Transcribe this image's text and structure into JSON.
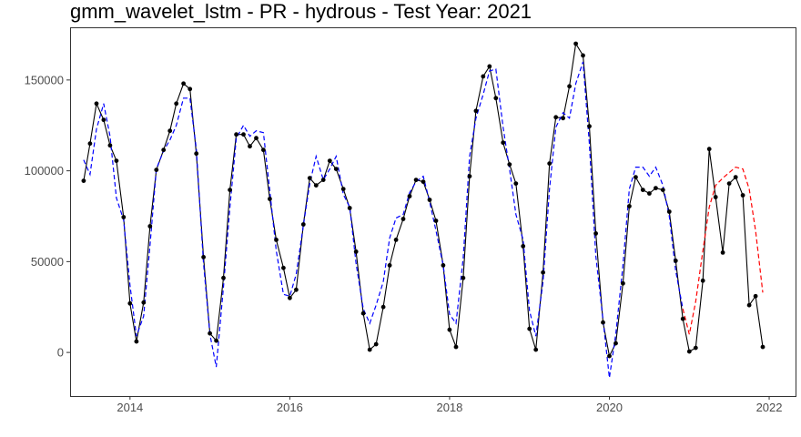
{
  "chart_data": {
    "type": "line",
    "title": "gmm_wavelet_lstm - PR - hydrous - Test Year: 2021",
    "xlabel": "",
    "ylabel": "",
    "xlim": [
      2013.25,
      2022.33
    ],
    "ylim": [
      -24000,
      179000
    ],
    "x_ticks": [
      2014,
      2016,
      2018,
      2020,
      2022
    ],
    "x_tick_labels": [
      "2014",
      "2016",
      "2018",
      "2020",
      "2022"
    ],
    "y_ticks": [
      0,
      50000,
      100000,
      150000
    ],
    "y_tick_labels": [
      "0",
      "50000",
      "100000",
      "150000"
    ],
    "grid": false,
    "legend": "none",
    "series": [
      {
        "style": "solid",
        "color": "#000000",
        "markers": true,
        "x": [
          2013.42,
          2013.5,
          2013.58,
          2013.67,
          2013.75,
          2013.83,
          2013.92,
          2014.0,
          2014.08,
          2014.17,
          2014.25,
          2014.33,
          2014.42,
          2014.5,
          2014.58,
          2014.67,
          2014.75,
          2014.83,
          2014.92,
          2015.0,
          2015.08,
          2015.17,
          2015.25,
          2015.33,
          2015.42,
          2015.5,
          2015.58,
          2015.67,
          2015.75,
          2015.83,
          2015.92,
          2016.0,
          2016.08,
          2016.17,
          2016.25,
          2016.33,
          2016.42,
          2016.5,
          2016.58,
          2016.67,
          2016.75,
          2016.83,
          2016.92,
          2017.0,
          2017.08,
          2017.17,
          2017.25,
          2017.33,
          2017.42,
          2017.5,
          2017.58,
          2017.67,
          2017.75,
          2017.83,
          2017.92,
          2018.0,
          2018.08,
          2018.17,
          2018.25,
          2018.33,
          2018.42,
          2018.5,
          2018.58,
          2018.67,
          2018.75,
          2018.83,
          2018.92,
          2019.0,
          2019.08,
          2019.17,
          2019.25,
          2019.33,
          2019.42,
          2019.5,
          2019.58,
          2019.67,
          2019.75,
          2019.83,
          2019.92,
          2020.0,
          2020.08,
          2020.17,
          2020.25,
          2020.33,
          2020.42,
          2020.5,
          2020.58,
          2020.67,
          2020.75,
          2020.83,
          2020.92,
          2021.0,
          2021.08,
          2021.17,
          2021.25,
          2021.33,
          2021.42,
          2021.5,
          2021.58,
          2021.67,
          2021.75,
          2021.83,
          2021.92
        ],
        "y": [
          94500,
          115000,
          137000,
          128000,
          114000,
          105500,
          74500,
          27000,
          6000,
          27500,
          69500,
          100500,
          111500,
          122000,
          137000,
          148000,
          145000,
          109500,
          52500,
          10500,
          6500,
          41000,
          89500,
          120000,
          120000,
          113500,
          118000,
          111500,
          84500,
          62000,
          46500,
          30000,
          34500,
          70500,
          96000,
          92000,
          95000,
          105500,
          101000,
          90000,
          79500,
          55500,
          21500,
          1500,
          4500,
          25000,
          48000,
          62000,
          73500,
          86000,
          95000,
          94000,
          84000,
          72500,
          48000,
          12500,
          3000,
          41000,
          97000,
          133000,
          152000,
          157500,
          140000,
          115500,
          103500,
          93000,
          58500,
          13000,
          1500,
          44000,
          104000,
          129500,
          129000,
          146500,
          170000,
          163500,
          124500,
          65500,
          16500,
          -2000,
          5000,
          38000,
          80500,
          96500,
          89500,
          87500,
          90500,
          89500,
          77500,
          50500,
          18500,
          500,
          2500,
          39500,
          112000,
          85500,
          55000,
          93000,
          96500,
          86500,
          26000,
          31000,
          3000
        ]
      },
      {
        "style": "dashed",
        "color": "#0000ff",
        "markers": false,
        "x": [
          2013.42,
          2013.5,
          2013.58,
          2013.67,
          2013.75,
          2013.83,
          2013.92,
          2014.0,
          2014.08,
          2014.17,
          2014.25,
          2014.33,
          2014.42,
          2014.5,
          2014.58,
          2014.67,
          2014.75,
          2014.83,
          2014.92,
          2015.0,
          2015.08,
          2015.17,
          2015.25,
          2015.33,
          2015.42,
          2015.5,
          2015.58,
          2015.67,
          2015.75,
          2015.83,
          2015.92,
          2016.0,
          2016.08,
          2016.17,
          2016.25,
          2016.33,
          2016.42,
          2016.5,
          2016.58,
          2016.67,
          2016.75,
          2016.83,
          2016.92,
          2017.0,
          2017.08,
          2017.17,
          2017.25,
          2017.33,
          2017.42,
          2017.5,
          2017.58,
          2017.67,
          2017.75,
          2017.83,
          2017.92,
          2018.0,
          2018.08,
          2018.17,
          2018.25,
          2018.33,
          2018.42,
          2018.5,
          2018.58,
          2018.67,
          2018.75,
          2018.83,
          2018.92,
          2019.0,
          2019.08,
          2019.17,
          2019.25,
          2019.33,
          2019.42,
          2019.5,
          2019.58,
          2019.67,
          2019.75,
          2019.83,
          2019.92,
          2020.0,
          2020.08,
          2020.17,
          2020.25,
          2020.33,
          2020.42,
          2020.5,
          2020.58,
          2020.67,
          2020.75,
          2020.83,
          2020.92
        ],
        "y": [
          106000,
          98000,
          123000,
          137000,
          119000,
          85000,
          73000,
          37000,
          9000,
          20000,
          59000,
          101000,
          111000,
          117000,
          125000,
          140000,
          140000,
          112000,
          49000,
          10000,
          -8000,
          36000,
          80000,
          118000,
          125000,
          119000,
          122000,
          121000,
          89000,
          56000,
          32000,
          31000,
          43000,
          70000,
          93000,
          108000,
          95000,
          101000,
          108000,
          87000,
          80000,
          49000,
          24000,
          16000,
          26000,
          39000,
          63000,
          74000,
          76000,
          88000,
          94000,
          97000,
          83000,
          67000,
          48000,
          21000,
          16000,
          52000,
          108000,
          129000,
          142000,
          155000,
          156000,
          124000,
          101000,
          76000,
          62000,
          23000,
          9000,
          39000,
          90000,
          124000,
          132000,
          129000,
          148000,
          160000,
          115000,
          53000,
          18000,
          -14000,
          10000,
          48000,
          90000,
          102000,
          102000,
          97000,
          102000,
          92000,
          75000,
          45000,
          24000
        ]
      },
      {
        "style": "dashed",
        "color": "#ff0000",
        "markers": false,
        "x": [
          2020.92,
          2021.0,
          2021.08,
          2021.17,
          2021.25,
          2021.33,
          2021.42,
          2021.5,
          2021.58,
          2021.67,
          2021.75,
          2021.83,
          2021.92
        ],
        "y": [
          24000,
          10000,
          28000,
          56000,
          80000,
          92000,
          96000,
          99000,
          102000,
          101000,
          90000,
          67000,
          33000
        ]
      }
    ]
  }
}
